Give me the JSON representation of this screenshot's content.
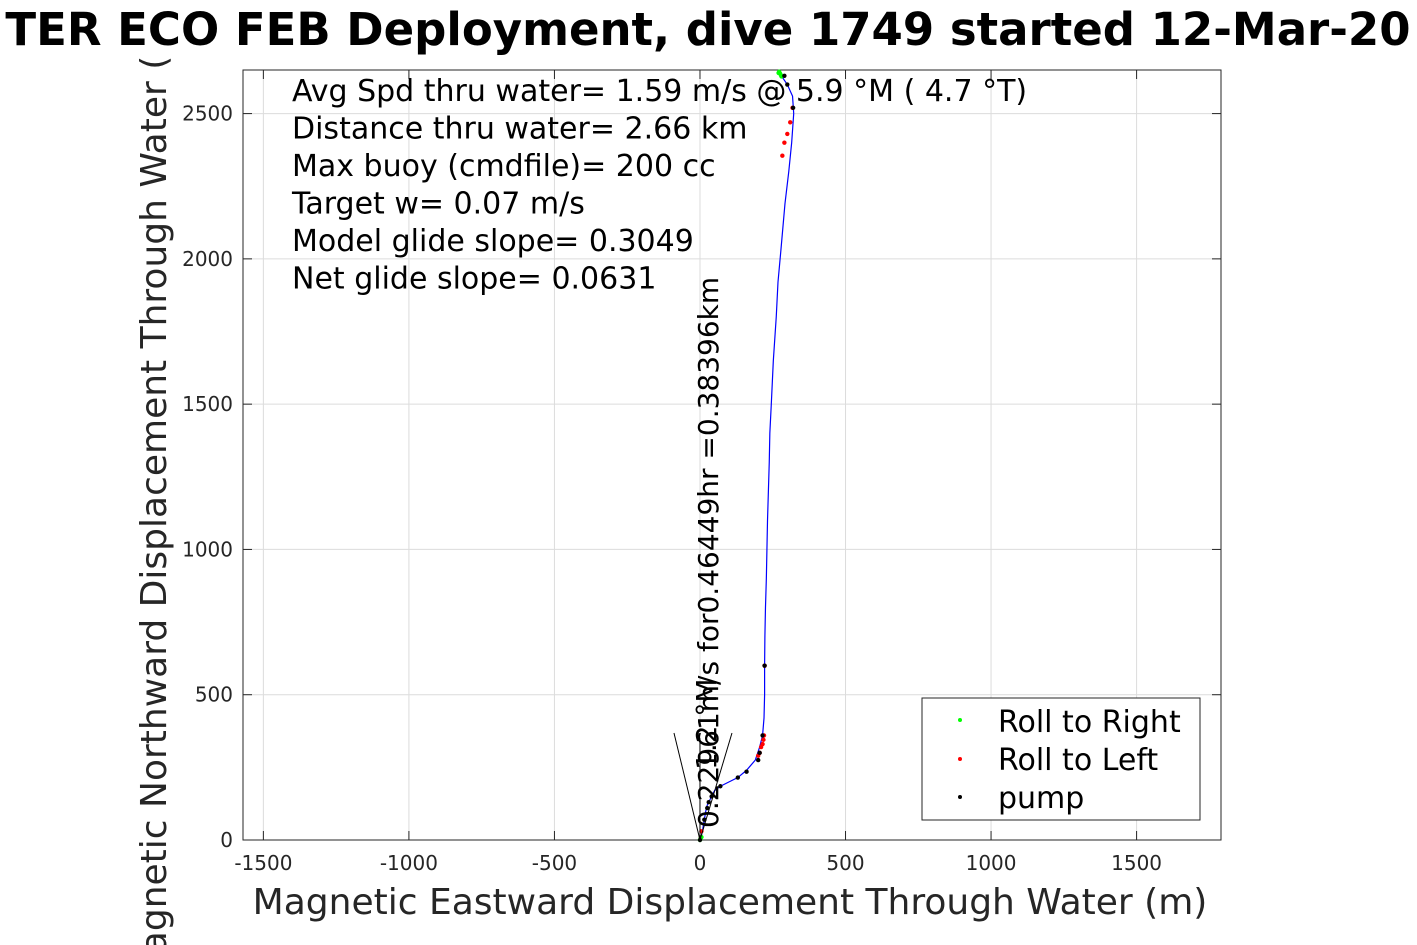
{
  "chart_data": {
    "type": "line",
    "title": "TER ECO FEB Deployment, dive 1749 started 12-Mar-20",
    "xlabel": "Magnetic Eastward Displacement Through Water (m)",
    "ylabel": "Magnetic Northward Displacement Through Water (",
    "xlim": [
      -1570,
      1790
    ],
    "ylim": [
      0,
      2650
    ],
    "x_ticks": [
      -1500,
      -1000,
      -500,
      0,
      500,
      1000,
      1500
    ],
    "y_ticks": [
      0,
      500,
      1000,
      1500,
      2000,
      2500
    ],
    "grid": true,
    "annotations": [
      "Avg Spd thru water=  1.59 m/s @   5.9 °M (  4.7 °T)",
      "Distance thru water=  2.66 km",
      "Max buoy (cmdfile)= 200 cc",
      "Target w= 0.07 m/s",
      "Model glide slope= 0.3049",
      "Net glide slope= 0.0631"
    ],
    "current_label": "0.22961m/s for0.46449hr =0.38396km",
    "current_label_overlap": "1.2 °M",
    "legend": {
      "position": "bottom-right",
      "entries": [
        {
          "label": "Roll to Right",
          "color": "#00ff00"
        },
        {
          "label": "Roll to Left",
          "color": "#ff0000"
        },
        {
          "label": "pump",
          "color": "#000000"
        }
      ]
    },
    "track_color": "#0000ff",
    "series": [
      {
        "name": "track",
        "x": [
          0,
          5,
          10,
          15,
          20,
          25,
          30,
          40,
          50,
          70,
          100,
          130,
          160,
          190,
          205,
          215,
          220,
          222,
          222,
          223,
          225,
          228,
          230,
          232,
          235,
          238,
          240,
          245,
          252,
          262,
          268,
          278,
          292,
          305,
          315,
          322,
          318,
          300,
          283,
          272,
          270
        ],
        "y": [
          0,
          15,
          40,
          70,
          100,
          120,
          130,
          150,
          170,
          185,
          200,
          215,
          240,
          275,
          320,
          360,
          420,
          500,
          600,
          700,
          800,
          900,
          1000,
          1100,
          1200,
          1300,
          1400,
          1500,
          1650,
          1800,
          1920,
          2030,
          2190,
          2300,
          2400,
          2500,
          2560,
          2600,
          2625,
          2635,
          2640
        ]
      },
      {
        "name": "Roll to Left",
        "x": [
          3,
          5,
          200,
          205,
          210,
          215,
          218,
          220,
          222,
          283,
          290,
          300,
          310,
          318
        ],
        "y": [
          10,
          30,
          290,
          300,
          320,
          330,
          345,
          360,
          600,
          2355,
          2400,
          2430,
          2470,
          2520
        ]
      },
      {
        "name": "Roll to Right",
        "x": [
          0,
          2,
          5,
          270,
          272,
          275,
          278,
          280
        ],
        "y": [
          0,
          5,
          10,
          2640,
          2644,
          2638,
          2632,
          2628
        ]
      },
      {
        "name": "pump",
        "x": [
          0,
          15,
          25,
          30,
          40,
          70,
          130,
          160,
          200,
          205,
          215,
          222,
          320,
          300,
          290
        ],
        "y": [
          0,
          70,
          110,
          130,
          150,
          185,
          215,
          235,
          275,
          300,
          360,
          600,
          2520,
          2600,
          2630
        ]
      }
    ],
    "current_vector": {
      "x1": 0,
      "y1": 0,
      "x2": 0,
      "y2": 350
    }
  }
}
